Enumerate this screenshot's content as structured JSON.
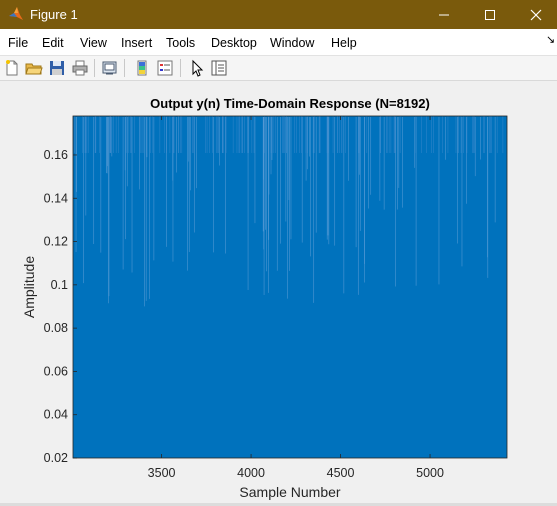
{
  "window": {
    "title": "Figure 1",
    "titlebar_color": "#7a5a0c"
  },
  "menu": {
    "items": [
      "File",
      "Edit",
      "View",
      "Insert",
      "Tools",
      "Desktop",
      "Window",
      "Help"
    ]
  },
  "toolbar": {
    "icons": [
      "new-figure-icon",
      "open-file-icon",
      "save-icon",
      "print-icon",
      "link-plot-icon",
      "insert-colorbar-icon",
      "insert-legend-icon",
      "edit-plot-icon",
      "property-inspector-icon"
    ]
  },
  "chart_data": {
    "type": "area",
    "title": "Output y(n) Time-Domain Response (N=8192)",
    "xlabel": "Sample Number",
    "ylabel": "Amplitude",
    "xlim": [
      3005,
      5430
    ],
    "ylim": [
      0.02,
      0.178
    ],
    "xticks": [
      3500,
      4000,
      4500,
      5000
    ],
    "yticks": [
      0.02,
      0.04,
      0.06,
      0.08,
      0.1,
      0.12,
      0.14,
      0.16
    ],
    "ytick_labels": [
      "0.02",
      "0.04",
      "0.06",
      "0.08",
      "0.1",
      "0.12",
      "0.14",
      "0.16"
    ],
    "series": [
      {
        "color": "#0072bd",
        "baseline": 0.02,
        "dense_band_top": 0.16,
        "peak": 0.178,
        "trough_low": 0.09
      }
    ],
    "grid": false
  }
}
